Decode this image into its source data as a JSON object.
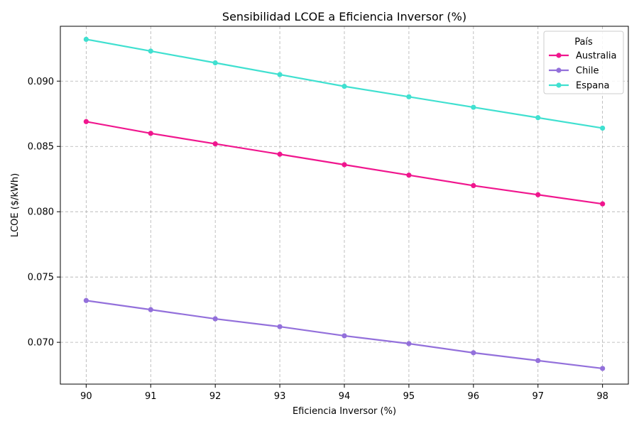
{
  "chart_data": {
    "type": "line",
    "title": "Sensibilidad LCOE a Eficiencia Inversor (%)",
    "xlabel": "Eficiencia Inversor (%)",
    "ylabel": "LCOE ($/kWh)",
    "x": [
      90,
      91,
      92,
      93,
      94,
      95,
      96,
      97,
      98
    ],
    "xlim": [
      89.6,
      98.4
    ],
    "ylim": [
      0.0668,
      0.0942
    ],
    "xticks": [
      "90",
      "91",
      "92",
      "93",
      "94",
      "95",
      "96",
      "97",
      "98"
    ],
    "yticks": [
      "0.070",
      "0.075",
      "0.080",
      "0.085",
      "0.090"
    ],
    "ytick_values": [
      0.07,
      0.075,
      0.08,
      0.085,
      0.09
    ],
    "grid": true,
    "legend": {
      "title": "País",
      "placement": "top-right"
    },
    "series": [
      {
        "name": "Australia",
        "color": "#f0168e",
        "values": [
          0.0869,
          0.086,
          0.0852,
          0.0844,
          0.0836,
          0.0828,
          0.082,
          0.0813,
          0.0806
        ]
      },
      {
        "name": "Chile",
        "color": "#9370db",
        "values": [
          0.0732,
          0.0725,
          0.0718,
          0.0712,
          0.0705,
          0.0699,
          0.0692,
          0.0686,
          0.068
        ]
      },
      {
        "name": "Espana",
        "color": "#40e0d0",
        "values": [
          0.0932,
          0.0923,
          0.0914,
          0.0905,
          0.0896,
          0.0888,
          0.088,
          0.0872,
          0.0864
        ]
      }
    ]
  }
}
